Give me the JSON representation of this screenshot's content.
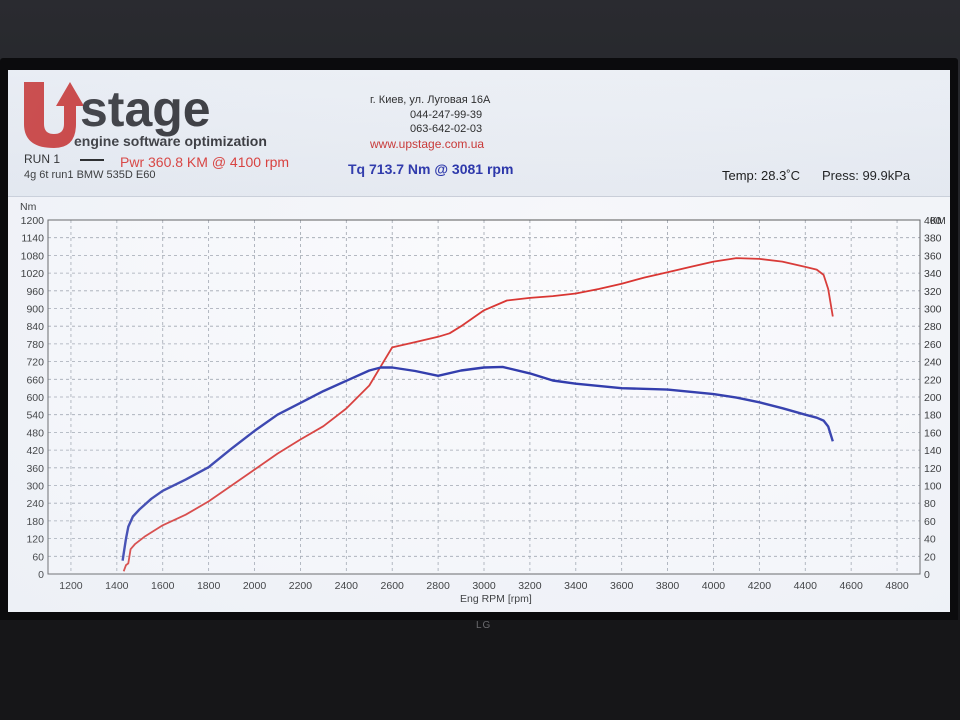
{
  "header": {
    "brand_top": "stage",
    "brand_sub": "engine software optimization",
    "address": "г. Киев, ул. Луговая 16А",
    "phone1": "044-247-99-39",
    "phone2": "063-642-02-03",
    "website": "www.upstage.com.ua",
    "run_label": "RUN 1",
    "vehicle": "4g 6t run1 BMW 535D E60",
    "pwr": "Pwr  360.8 KM @ 4100 rpm",
    "tq": "Tq 713.7 Nm @ 3081 rpm",
    "temp": "Temp: 28.3˚C",
    "press": "Press: 99.9kPa"
  },
  "monitor": {
    "brand": "LG"
  },
  "colors": {
    "power": "#d9302c",
    "torque": "#2631a8",
    "grid": "#9aa0aa",
    "website": "#c8302e"
  },
  "chart_data": {
    "type": "line",
    "xlabel": "Eng RPM [rpm]",
    "ylabel_left": "Nm",
    "ylabel_right": "KM",
    "xlim": [
      1100,
      4900
    ],
    "ylim_left": [
      0,
      1200
    ],
    "ylim_right": [
      0,
      400
    ],
    "x_ticks": [
      1200,
      1400,
      1600,
      1800,
      2000,
      2200,
      2400,
      2600,
      2800,
      3000,
      3200,
      3400,
      3600,
      3800,
      4000,
      4200,
      4400,
      4600,
      4800
    ],
    "y_left_ticks": [
      0,
      60,
      120,
      180,
      240,
      300,
      360,
      420,
      480,
      540,
      600,
      660,
      720,
      780,
      840,
      900,
      960,
      1020,
      1080,
      1140,
      1200
    ],
    "y_right_ticks": [
      0,
      20,
      40,
      60,
      80,
      100,
      120,
      140,
      160,
      180,
      200,
      220,
      240,
      260,
      280,
      300,
      320,
      340,
      360,
      380,
      400
    ],
    "grid": true,
    "series": [
      {
        "name": "Pwr",
        "axis": "right",
        "color": "#d9302c",
        "x": [
          1430,
          1440,
          1450,
          1460,
          1480,
          1520,
          1600,
          1700,
          1800,
          1900,
          2000,
          2100,
          2200,
          2300,
          2400,
          2500,
          2600,
          2700,
          2800,
          2850,
          2900,
          3000,
          3100,
          3200,
          3300,
          3400,
          3500,
          3600,
          3700,
          3800,
          3900,
          4000,
          4100,
          4200,
          4300,
          4400,
          4450,
          4480,
          4500,
          4520
        ],
        "y": [
          3,
          10,
          12,
          28,
          34,
          42,
          55,
          67,
          82,
          100,
          118,
          136,
          152,
          167,
          187,
          213,
          256,
          262,
          268,
          272,
          280,
          298,
          309,
          312,
          314,
          317,
          322,
          328,
          335,
          341,
          347,
          353,
          357,
          356,
          353,
          347,
          344,
          338,
          322,
          291
        ]
      },
      {
        "name": "Tq",
        "axis": "left",
        "color": "#2631a8",
        "x": [
          1425,
          1430,
          1440,
          1450,
          1470,
          1500,
          1550,
          1600,
          1700,
          1800,
          1900,
          2000,
          2100,
          2200,
          2300,
          2400,
          2500,
          2550,
          2600,
          2700,
          2800,
          2900,
          3000,
          3081,
          3200,
          3300,
          3400,
          3600,
          3800,
          4000,
          4100,
          4200,
          4300,
          4400,
          4450,
          4480,
          4500,
          4520
        ],
        "y": [
          45,
          70,
          120,
          160,
          195,
          220,
          255,
          282,
          320,
          362,
          425,
          485,
          540,
          580,
          620,
          655,
          690,
          700,
          700,
          688,
          672,
          690,
          700,
          702,
          680,
          656,
          645,
          630,
          625,
          610,
          598,
          582,
          562,
          540,
          530,
          520,
          500,
          450
        ]
      }
    ]
  }
}
